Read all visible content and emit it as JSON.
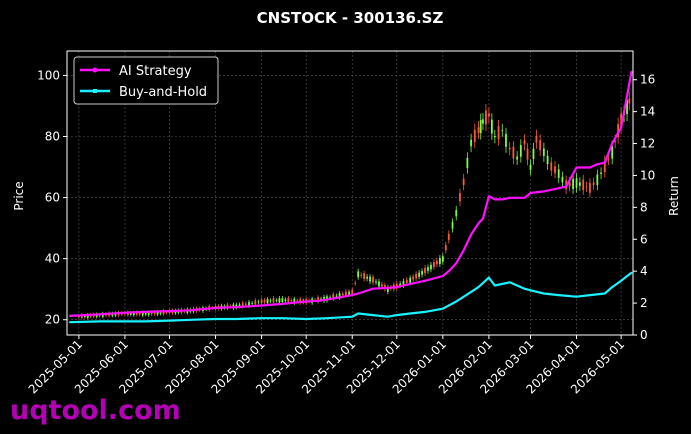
{
  "watermark": "uqtool.com",
  "colors": {
    "background": "#000000",
    "grid": "#555555",
    "up_candle": "#7cfc44",
    "down_candle": "#ff5a36",
    "ai_strategy": "#ff10ff",
    "buy_and_hold": "#19f2ff"
  },
  "chart_data": {
    "type": "line",
    "title": "CNSTOCK - 300136.SZ",
    "xlabel": "",
    "ylabel": "Price",
    "y2label": "Return",
    "ylim": [
      15,
      108
    ],
    "y2lim": [
      0,
      17.8
    ],
    "xlim": [
      "2025-04-23",
      "2026-05-09"
    ],
    "grid": true,
    "legend_position": "top-left",
    "x_ticks": [
      "2025-05-01",
      "2025-06-01",
      "2025-07-01",
      "2025-08-01",
      "2025-09-01",
      "2025-10-01",
      "2025-11-01",
      "2025-12-01",
      "2026-01-01",
      "2026-02-01",
      "2026-03-01",
      "2026-04-01",
      "2026-05-01"
    ],
    "y_ticks": [
      20,
      40,
      60,
      80,
      100
    ],
    "y2_ticks": [
      0,
      2,
      4,
      6,
      8,
      10,
      12,
      14,
      16
    ],
    "series": [
      {
        "name": "AI Strategy",
        "axis": "right",
        "x": [
          "2025-04-25",
          "2025-05-15",
          "2025-06-01",
          "2025-06-15",
          "2025-07-01",
          "2025-07-15",
          "2025-08-01",
          "2025-08-15",
          "2025-09-01",
          "2025-09-15",
          "2025-10-01",
          "2025-10-10",
          "2025-10-20",
          "2025-11-01",
          "2025-11-05",
          "2025-11-15",
          "2025-11-25",
          "2025-12-01",
          "2025-12-10",
          "2025-12-20",
          "2026-01-01",
          "2026-01-05",
          "2026-01-10",
          "2026-01-15",
          "2026-01-20",
          "2026-01-25",
          "2026-01-28",
          "2026-02-01",
          "2026-02-05",
          "2026-02-10",
          "2026-02-15",
          "2026-02-20",
          "2026-02-25",
          "2026-03-01",
          "2026-03-10",
          "2026-03-20",
          "2026-03-25",
          "2026-04-01",
          "2026-04-10",
          "2026-04-15",
          "2026-04-20",
          "2026-04-25",
          "2026-05-01",
          "2026-05-05",
          "2026-05-08"
        ],
        "values": [
          1.2,
          1.3,
          1.4,
          1.45,
          1.5,
          1.55,
          1.7,
          1.75,
          1.85,
          1.95,
          2.1,
          2.15,
          2.3,
          2.5,
          2.6,
          2.9,
          2.95,
          3.0,
          3.2,
          3.4,
          3.7,
          4.0,
          4.5,
          5.3,
          6.3,
          7.0,
          7.3,
          8.7,
          8.5,
          8.5,
          8.6,
          8.6,
          8.6,
          8.9,
          9.0,
          9.2,
          9.3,
          10.5,
          10.5,
          10.7,
          10.8,
          12.0,
          13.0,
          15.0,
          16.5
        ]
      },
      {
        "name": "Buy-and-Hold",
        "axis": "right",
        "x": [
          "2025-04-25",
          "2025-05-15",
          "2025-06-01",
          "2025-06-15",
          "2025-07-01",
          "2025-07-15",
          "2025-08-01",
          "2025-08-15",
          "2025-09-01",
          "2025-09-15",
          "2025-10-01",
          "2025-10-15",
          "2025-11-01",
          "2025-11-05",
          "2025-11-15",
          "2025-11-25",
          "2025-12-01",
          "2025-12-10",
          "2025-12-20",
          "2026-01-01",
          "2026-01-10",
          "2026-01-20",
          "2026-01-25",
          "2026-02-01",
          "2026-02-05",
          "2026-02-15",
          "2026-02-25",
          "2026-03-01",
          "2026-03-10",
          "2026-03-20",
          "2026-04-01",
          "2026-04-10",
          "2026-04-20",
          "2026-04-25",
          "2026-05-01",
          "2026-05-05",
          "2026-05-08"
        ],
        "values": [
          0.8,
          0.85,
          0.85,
          0.85,
          0.9,
          0.95,
          1.0,
          1.0,
          1.05,
          1.05,
          1.0,
          1.05,
          1.15,
          1.35,
          1.25,
          1.15,
          1.25,
          1.35,
          1.45,
          1.65,
          2.1,
          2.7,
          3.0,
          3.6,
          3.1,
          3.3,
          2.9,
          2.8,
          2.6,
          2.5,
          2.4,
          2.5,
          2.6,
          3.0,
          3.4,
          3.7,
          3.9
        ]
      },
      {
        "name": "",
        "type": "candlestick",
        "axis": "left",
        "x": [
          "2025-05-01",
          "2025-05-15",
          "2025-06-01",
          "2025-06-15",
          "2025-07-01",
          "2025-07-15",
          "2025-08-01",
          "2025-08-15",
          "2025-09-01",
          "2025-09-15",
          "2025-10-01",
          "2025-10-15",
          "2025-11-01",
          "2025-11-05",
          "2025-11-15",
          "2025-11-25",
          "2025-12-01",
          "2025-12-10",
          "2025-12-20",
          "2026-01-01",
          "2026-01-05",
          "2026-01-10",
          "2026-01-15",
          "2026-01-20",
          "2026-01-25",
          "2026-01-28",
          "2026-02-01",
          "2026-02-05",
          "2026-02-10",
          "2026-02-15",
          "2026-02-20",
          "2026-02-25",
          "2026-03-01",
          "2026-03-05",
          "2026-03-10",
          "2026-03-15",
          "2026-03-20",
          "2026-03-25",
          "2026-04-01",
          "2026-04-10",
          "2026-04-15",
          "2026-04-20",
          "2026-04-25",
          "2026-05-01",
          "2026-05-05",
          "2026-05-08"
        ],
        "values": [
          21,
          21.5,
          22,
          22,
          22.5,
          23,
          24,
          24.5,
          26,
          26.5,
          26,
          27,
          29,
          35,
          33,
          30,
          31,
          33,
          36,
          40,
          47,
          55,
          65,
          78,
          82,
          85,
          87,
          80,
          82,
          76,
          73,
          78,
          70,
          79,
          75,
          70,
          68,
          64,
          65,
          63,
          66,
          70,
          75,
          85,
          90,
          93
        ]
      }
    ]
  }
}
